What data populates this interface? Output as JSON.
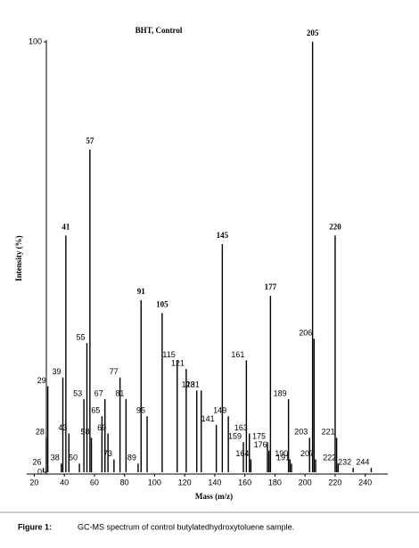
{
  "chart_data": {
    "type": "bar",
    "title": "BHT, Control",
    "ylabel": "Intensity (%)",
    "xlabel": "Mass (m/z)",
    "x": [
      26,
      28,
      29,
      38,
      39,
      41,
      43,
      50,
      53,
      55,
      57,
      58,
      65,
      67,
      69,
      73,
      77,
      81,
      89,
      91,
      95,
      105,
      115,
      121,
      128,
      131,
      141,
      145,
      149,
      159,
      161,
      163,
      164,
      175,
      176,
      177,
      189,
      190,
      191,
      203,
      205,
      206,
      207,
      220,
      221,
      222,
      232,
      244
    ],
    "values": [
      1,
      8,
      20,
      2,
      22,
      55,
      9,
      2,
      17,
      30,
      75,
      8,
      13,
      17,
      9,
      3,
      22,
      17,
      2,
      40,
      13,
      37,
      26,
      24,
      19,
      19,
      11,
      53,
      13,
      7,
      26,
      9,
      3,
      7,
      5,
      41,
      17,
      3,
      2,
      8,
      100,
      31,
      3,
      55,
      8,
      2,
      1,
      1
    ],
    "color": "#000000",
    "xlim": [
      15,
      255
    ],
    "ylim": [
      0,
      100
    ],
    "xticks": [
      20,
      40,
      60,
      80,
      100,
      120,
      140,
      160,
      180,
      200,
      220,
      240
    ],
    "yticks": [
      0,
      100
    ]
  },
  "caption": {
    "label": "Figure 1:",
    "text": "GC-MS spectrum of control butylatedhydroxytoluene sample."
  }
}
